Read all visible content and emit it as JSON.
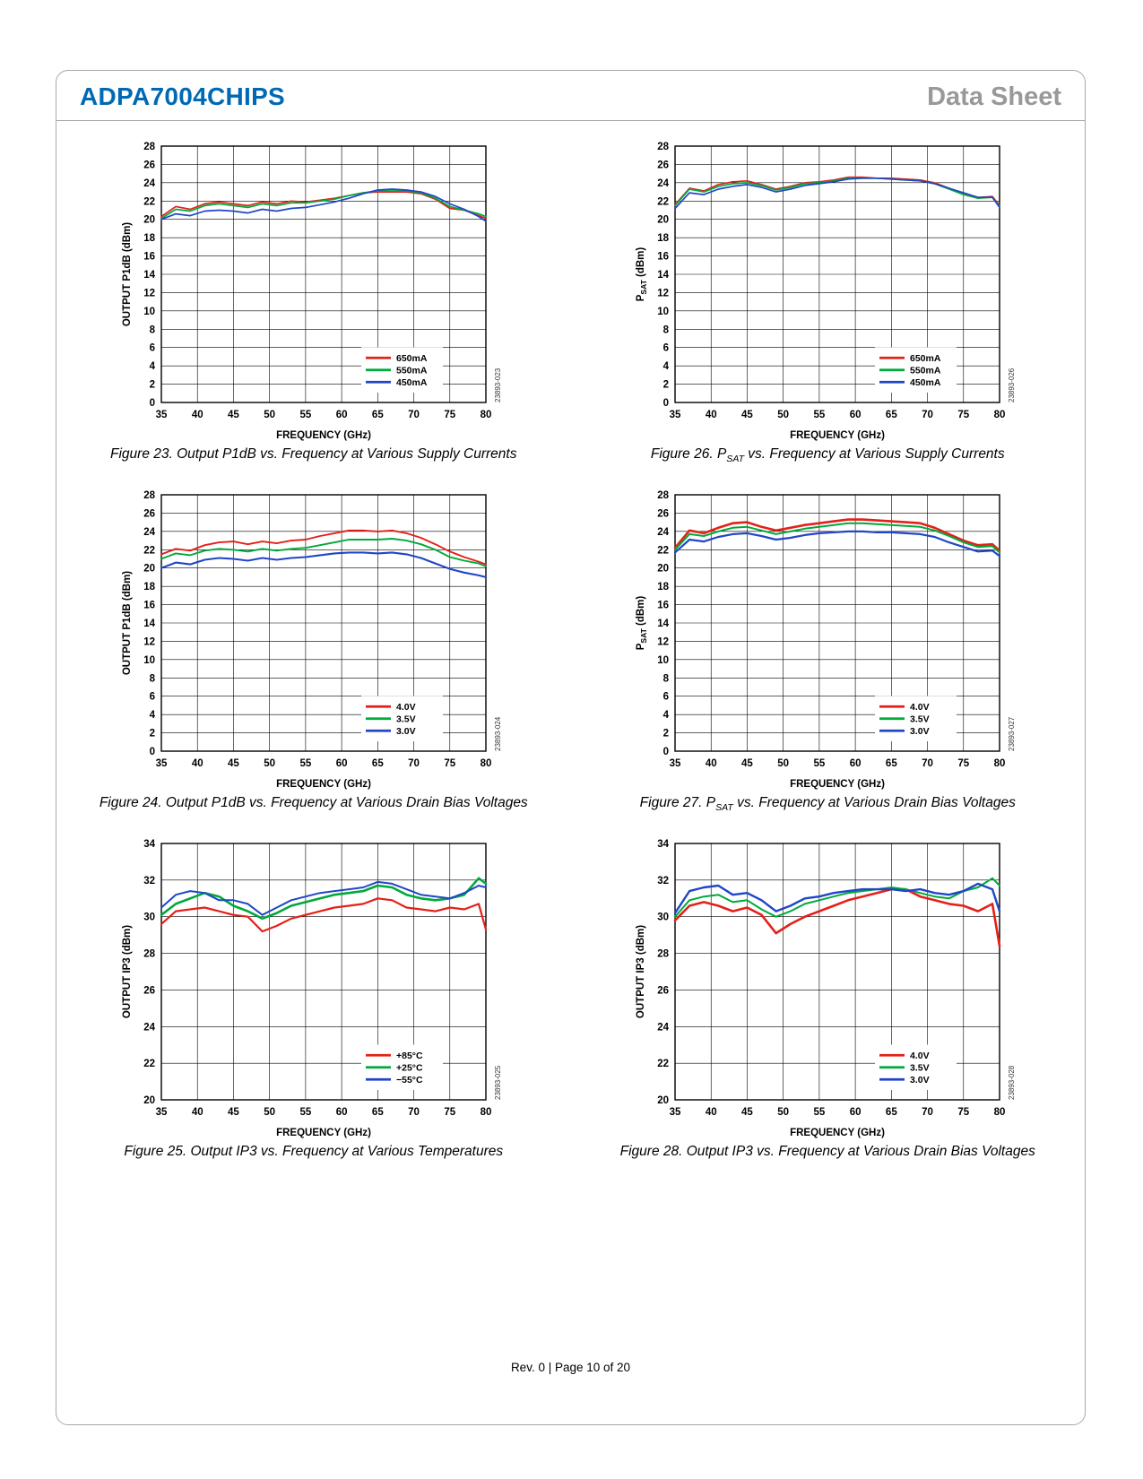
{
  "page": {
    "header": {
      "part_number": "ADPA7004CHIPS",
      "doc_type": "Data Sheet"
    },
    "footer": "Rev. 0 | Page 10 of 20"
  },
  "colors": {
    "red": "#e32119",
    "green": "#00a93c",
    "blue": "#2046c7",
    "header_blue": "#0069b4",
    "header_gray": "#97999b"
  },
  "chart_data": [
    {
      "type": "line",
      "figure": "Figure 23",
      "caption": "Figure 23. Output P1dB vs. Frequency at Various Supply Currents",
      "code": "23893-023",
      "xlabel": "FREQUENCY (GHz)",
      "ylabel": "OUTPUT P1dB (dBm)",
      "xlim": [
        35,
        80
      ],
      "xstep": 5,
      "ylim": [
        0,
        28
      ],
      "ystep": 2,
      "grid": true,
      "legend_position": "lower-right",
      "x": [
        35,
        37,
        39,
        41,
        43,
        45,
        47,
        49,
        51,
        53,
        55,
        57,
        59,
        61,
        63,
        65,
        67,
        69,
        71,
        73,
        75,
        77,
        79,
        80
      ],
      "series": [
        {
          "name": "650mA",
          "color": "red",
          "lw": 1.7,
          "values": [
            20.3,
            21.4,
            21.1,
            21.7,
            21.9,
            21.7,
            21.5,
            21.9,
            21.7,
            22.0,
            21.9,
            22.1,
            22.3,
            22.6,
            22.9,
            23.0,
            23.0,
            23.0,
            22.8,
            22.2,
            21.2,
            21.0,
            20.4,
            20.1
          ]
        },
        {
          "name": "550mA",
          "color": "green",
          "lw": 1.7,
          "values": [
            20.1,
            21.1,
            20.9,
            21.5,
            21.7,
            21.5,
            21.3,
            21.7,
            21.5,
            21.8,
            21.8,
            22.0,
            22.2,
            22.6,
            22.9,
            23.1,
            23.1,
            23.1,
            22.9,
            22.3,
            21.4,
            21.0,
            20.6,
            20.3
          ]
        },
        {
          "name": "450mA",
          "color": "blue",
          "lw": 1.7,
          "values": [
            20.0,
            20.6,
            20.4,
            20.9,
            21.0,
            20.9,
            20.7,
            21.1,
            20.9,
            21.2,
            21.3,
            21.6,
            21.9,
            22.3,
            22.8,
            23.2,
            23.3,
            23.2,
            23.0,
            22.5,
            21.7,
            21.1,
            20.3,
            19.8
          ]
        }
      ]
    },
    {
      "type": "line",
      "figure": "Figure 26",
      "caption": "Figure 26. P~SAT~ vs. Frequency at Various Supply Currents",
      "code": "23893-026",
      "xlabel": "FREQUENCY (GHz)",
      "ylabel": "P~SAT~ (dBm)",
      "xlim": [
        35,
        80
      ],
      "xstep": 5,
      "ylim": [
        0,
        28
      ],
      "ystep": 2,
      "grid": true,
      "legend_position": "lower-right",
      "x": [
        35,
        37,
        39,
        41,
        43,
        45,
        47,
        49,
        51,
        53,
        55,
        57,
        59,
        61,
        63,
        65,
        67,
        69,
        71,
        73,
        75,
        77,
        79,
        80
      ],
      "series": [
        {
          "name": "650mA",
          "color": "red",
          "lw": 1.7,
          "values": [
            21.6,
            23.4,
            23.1,
            23.8,
            24.1,
            24.2,
            23.8,
            23.3,
            23.6,
            24.0,
            24.1,
            24.3,
            24.6,
            24.6,
            24.5,
            24.5,
            24.4,
            24.3,
            24.0,
            23.4,
            22.8,
            22.4,
            22.5,
            21.5
          ]
        },
        {
          "name": "550mA",
          "color": "green",
          "lw": 1.7,
          "values": [
            21.5,
            23.3,
            23.0,
            23.6,
            23.9,
            24.0,
            23.7,
            23.2,
            23.5,
            23.9,
            24.0,
            24.2,
            24.5,
            24.5,
            24.5,
            24.4,
            24.3,
            24.2,
            23.9,
            23.3,
            22.7,
            22.3,
            22.4,
            21.4
          ]
        },
        {
          "name": "450mA",
          "color": "blue",
          "lw": 1.7,
          "values": [
            21.2,
            22.9,
            22.7,
            23.3,
            23.6,
            23.8,
            23.5,
            23.0,
            23.3,
            23.7,
            23.9,
            24.1,
            24.4,
            24.5,
            24.5,
            24.4,
            24.3,
            24.2,
            23.9,
            23.4,
            22.9,
            22.4,
            22.4,
            21.3
          ]
        }
      ]
    },
    {
      "type": "line",
      "figure": "Figure 24",
      "caption": "Figure 24. Output P1dB vs. Frequency at Various Drain Bias Voltages",
      "code": "23893-024",
      "xlabel": "FREQUENCY (GHz)",
      "ylabel": "OUTPUT P1dB (dBm)",
      "xlim": [
        35,
        80
      ],
      "xstep": 5,
      "ylim": [
        0,
        28
      ],
      "ystep": 2,
      "grid": true,
      "legend_position": "lower-right",
      "x": [
        35,
        37,
        39,
        41,
        43,
        45,
        47,
        49,
        51,
        53,
        55,
        57,
        59,
        61,
        63,
        65,
        67,
        69,
        71,
        73,
        75,
        77,
        79,
        80
      ],
      "series": [
        {
          "name": "4.0V",
          "color": "red",
          "lw": 1.9,
          "values": [
            21.5,
            22.1,
            21.9,
            22.5,
            22.8,
            22.9,
            22.6,
            22.9,
            22.7,
            23.0,
            23.1,
            23.5,
            23.8,
            24.1,
            24.1,
            24.0,
            24.1,
            23.8,
            23.3,
            22.6,
            21.8,
            21.2,
            20.7,
            20.4
          ]
        },
        {
          "name": "3.5V",
          "color": "green",
          "lw": 1.9,
          "values": [
            21.0,
            21.6,
            21.4,
            21.9,
            22.1,
            22.0,
            21.8,
            22.1,
            21.9,
            22.1,
            22.2,
            22.5,
            22.8,
            23.1,
            23.1,
            23.1,
            23.2,
            23.0,
            22.6,
            22.0,
            21.2,
            20.8,
            20.5,
            20.2
          ]
        },
        {
          "name": "3.0V",
          "color": "blue",
          "lw": 2.1,
          "values": [
            20.0,
            20.6,
            20.4,
            20.9,
            21.1,
            21.0,
            20.8,
            21.1,
            20.9,
            21.1,
            21.2,
            21.4,
            21.6,
            21.7,
            21.7,
            21.6,
            21.7,
            21.5,
            21.1,
            20.5,
            19.9,
            19.5,
            19.2,
            19.0
          ]
        }
      ]
    },
    {
      "type": "line",
      "figure": "Figure 27",
      "caption": "Figure 27. P~SAT~ vs. Frequency at Various Drain Bias Voltages",
      "code": "23893-027",
      "xlabel": "FREQUENCY (GHz)",
      "ylabel": "P~SAT~ (dBm)",
      "xlim": [
        35,
        80
      ],
      "xstep": 5,
      "ylim": [
        0,
        28
      ],
      "ystep": 2,
      "grid": true,
      "legend_position": "lower-right",
      "x": [
        35,
        37,
        39,
        41,
        43,
        45,
        47,
        49,
        51,
        53,
        55,
        57,
        59,
        61,
        63,
        65,
        67,
        69,
        71,
        73,
        75,
        77,
        79,
        80
      ],
      "series": [
        {
          "name": "4.0V",
          "color": "red",
          "lw": 2.6,
          "values": [
            22.2,
            24.1,
            23.8,
            24.4,
            24.9,
            25.0,
            24.5,
            24.1,
            24.4,
            24.7,
            24.9,
            25.1,
            25.3,
            25.3,
            25.2,
            25.1,
            25.0,
            24.9,
            24.4,
            23.7,
            23.0,
            22.5,
            22.6,
            21.9
          ]
        },
        {
          "name": "3.5V",
          "color": "green",
          "lw": 2.0,
          "values": [
            22.0,
            23.7,
            23.5,
            24.0,
            24.4,
            24.5,
            24.1,
            23.7,
            24.0,
            24.3,
            24.5,
            24.7,
            24.9,
            24.9,
            24.8,
            24.7,
            24.6,
            24.5,
            24.1,
            23.5,
            22.8,
            22.3,
            22.4,
            21.7
          ]
        },
        {
          "name": "3.0V",
          "color": "blue",
          "lw": 2.2,
          "values": [
            21.7,
            23.1,
            22.9,
            23.4,
            23.7,
            23.8,
            23.5,
            23.1,
            23.3,
            23.6,
            23.8,
            23.9,
            24.0,
            24.0,
            23.9,
            23.9,
            23.8,
            23.7,
            23.4,
            22.8,
            22.3,
            21.8,
            21.9,
            21.3
          ]
        }
      ]
    },
    {
      "type": "line",
      "figure": "Figure 25",
      "caption": "Figure 25. Output IP3 vs. Frequency at Various Temperatures",
      "code": "23893-025",
      "xlabel": "FREQUENCY (GHz)",
      "ylabel": "OUTPUT IP3 (dBm)",
      "xlim": [
        35,
        80
      ],
      "xstep": 5,
      "ylim": [
        20,
        34
      ],
      "ystep": 2,
      "grid": true,
      "legend_position": "lower-right",
      "x": [
        35,
        37,
        39,
        41,
        43,
        45,
        47,
        49,
        51,
        53,
        55,
        57,
        59,
        61,
        63,
        65,
        67,
        69,
        71,
        73,
        75,
        77,
        79,
        80
      ],
      "series": [
        {
          "name": "+85°C",
          "color": "red",
          "lw": 2.2,
          "values": [
            29.6,
            30.3,
            30.4,
            30.5,
            30.3,
            30.1,
            30.0,
            29.2,
            29.5,
            29.9,
            30.1,
            30.3,
            30.5,
            30.6,
            30.7,
            31.0,
            30.9,
            30.5,
            30.4,
            30.3,
            30.5,
            30.4,
            30.7,
            29.3
          ]
        },
        {
          "name": "+25°C",
          "color": "green",
          "lw": 2.6,
          "values": [
            30.1,
            30.7,
            31.0,
            31.3,
            31.1,
            30.6,
            30.3,
            29.9,
            30.2,
            30.6,
            30.8,
            31.0,
            31.2,
            31.3,
            31.4,
            31.7,
            31.6,
            31.2,
            31.0,
            30.9,
            31.0,
            31.2,
            32.1,
            31.8
          ]
        },
        {
          "name": "−55°C",
          "color": "blue",
          "lw": 2.0,
          "values": [
            30.5,
            31.2,
            31.4,
            31.3,
            30.9,
            30.9,
            30.7,
            30.1,
            30.5,
            30.9,
            31.1,
            31.3,
            31.4,
            31.5,
            31.6,
            31.9,
            31.8,
            31.5,
            31.2,
            31.1,
            31.0,
            31.3,
            31.7,
            31.6
          ]
        }
      ]
    },
    {
      "type": "line",
      "figure": "Figure 28",
      "caption": "Figure 28. Output IP3 vs. Frequency at Various Drain Bias Voltages",
      "code": "23893-028",
      "xlabel": "FREQUENCY (GHz)",
      "ylabel": "OUTPUT IP3 (dBm)",
      "xlim": [
        35,
        80
      ],
      "xstep": 5,
      "ylim": [
        20,
        34
      ],
      "ystep": 2,
      "grid": true,
      "legend_position": "lower-right",
      "x": [
        35,
        37,
        39,
        41,
        43,
        45,
        47,
        49,
        51,
        53,
        55,
        57,
        59,
        61,
        63,
        65,
        67,
        69,
        71,
        73,
        75,
        77,
        79,
        80
      ],
      "series": [
        {
          "name": "4.0V",
          "color": "red",
          "lw": 2.6,
          "values": [
            29.8,
            30.6,
            30.8,
            30.6,
            30.3,
            30.5,
            30.1,
            29.1,
            29.6,
            30.0,
            30.3,
            30.6,
            30.9,
            31.1,
            31.3,
            31.5,
            31.5,
            31.1,
            30.9,
            30.7,
            30.6,
            30.3,
            30.7,
            28.4
          ]
        },
        {
          "name": "3.5V",
          "color": "green",
          "lw": 2.0,
          "values": [
            30.0,
            30.9,
            31.1,
            31.2,
            30.8,
            30.9,
            30.4,
            30.0,
            30.3,
            30.7,
            30.9,
            31.1,
            31.3,
            31.4,
            31.5,
            31.6,
            31.5,
            31.3,
            31.1,
            31.0,
            31.4,
            31.6,
            32.1,
            31.7
          ]
        },
        {
          "name": "3.0V",
          "color": "blue",
          "lw": 2.4,
          "values": [
            30.2,
            31.4,
            31.6,
            31.7,
            31.2,
            31.3,
            30.9,
            30.3,
            30.6,
            31.0,
            31.1,
            31.3,
            31.4,
            31.5,
            31.5,
            31.5,
            31.4,
            31.5,
            31.3,
            31.2,
            31.4,
            31.8,
            31.5,
            30.3
          ]
        }
      ]
    }
  ]
}
